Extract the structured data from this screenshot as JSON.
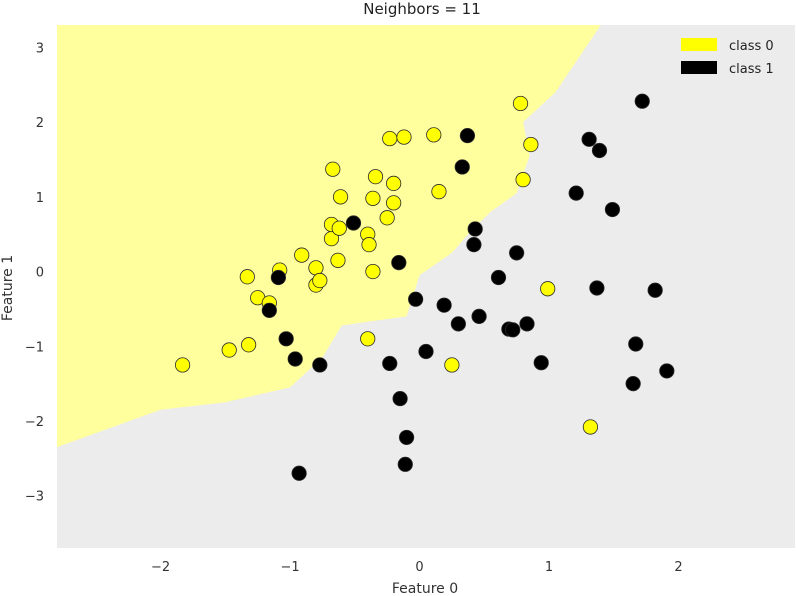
{
  "chart_data": {
    "type": "scatter",
    "title": "Neighbors = 11",
    "xlabel": "Feature 0",
    "ylabel": "Feature 1",
    "xlim": [
      -2.8,
      2.9
    ],
    "ylim": [
      -3.7,
      3.3
    ],
    "xticks": [
      -2,
      -1,
      0,
      1,
      2
    ],
    "yticks": [
      -3,
      -2,
      -1,
      0,
      1,
      2,
      3
    ],
    "grid": false,
    "legend_position": "top-right",
    "background_color": "#ececec",
    "decision_region": {
      "label": "class 0",
      "color": "#ffff9e",
      "boundary": [
        [
          -2.8,
          -2.35
        ],
        [
          -2.0,
          -1.85
        ],
        [
          -1.5,
          -1.75
        ],
        [
          -1.0,
          -1.55
        ],
        [
          -0.75,
          -1.15
        ],
        [
          -0.6,
          -0.72
        ],
        [
          -0.1,
          -0.6
        ],
        [
          0.0,
          -0.05
        ],
        [
          0.25,
          0.25
        ],
        [
          0.4,
          0.55
        ],
        [
          0.55,
          0.8
        ],
        [
          0.75,
          1.05
        ],
        [
          0.85,
          1.55
        ],
        [
          0.8,
          2.0
        ],
        [
          1.05,
          2.4
        ],
        [
          1.4,
          3.3
        ]
      ]
    },
    "series": [
      {
        "name": "class 0",
        "color": "#ffff00",
        "points": [
          [
            -1.83,
            -1.25
          ],
          [
            -1.47,
            -1.05
          ],
          [
            -1.32,
            -0.98
          ],
          [
            -1.25,
            -0.35
          ],
          [
            -1.16,
            -0.42
          ],
          [
            -1.33,
            -0.07
          ],
          [
            -1.08,
            0.02
          ],
          [
            -0.91,
            0.22
          ],
          [
            -0.8,
            0.05
          ],
          [
            -0.8,
            -0.18
          ],
          [
            -0.77,
            -0.12
          ],
          [
            -0.63,
            0.15
          ],
          [
            -0.68,
            0.44
          ],
          [
            -0.68,
            0.63
          ],
          [
            -0.62,
            0.58
          ],
          [
            -0.61,
            1.0
          ],
          [
            -0.67,
            1.37
          ],
          [
            -0.4,
            0.5
          ],
          [
            -0.39,
            0.36
          ],
          [
            -0.36,
            0.0
          ],
          [
            -0.36,
            0.98
          ],
          [
            -0.34,
            1.27
          ],
          [
            -0.25,
            0.72
          ],
          [
            -0.2,
            0.92
          ],
          [
            -0.2,
            1.18
          ],
          [
            -0.23,
            1.78
          ],
          [
            -0.12,
            1.8
          ],
          [
            0.11,
            1.83
          ],
          [
            0.15,
            1.07
          ],
          [
            -0.4,
            -0.9
          ],
          [
            0.25,
            -1.25
          ],
          [
            0.78,
            2.25
          ],
          [
            0.86,
            1.7
          ],
          [
            0.8,
            1.23
          ],
          [
            0.99,
            -0.23
          ],
          [
            1.32,
            -2.08
          ]
        ]
      },
      {
        "name": "class 1",
        "color": "#000000",
        "points": [
          [
            -1.16,
            -0.52
          ],
          [
            -1.09,
            -0.08
          ],
          [
            -1.03,
            -0.9
          ],
          [
            -0.96,
            -1.17
          ],
          [
            -0.77,
            -1.25
          ],
          [
            -0.93,
            -2.7
          ],
          [
            -0.51,
            0.65
          ],
          [
            -0.16,
            0.12
          ],
          [
            -0.23,
            -1.23
          ],
          [
            -0.15,
            -1.7
          ],
          [
            -0.1,
            -2.22
          ],
          [
            -0.11,
            -2.58
          ],
          [
            -0.03,
            -0.37
          ],
          [
            0.05,
            -1.07
          ],
          [
            0.19,
            -0.45
          ],
          [
            0.3,
            -0.7
          ],
          [
            0.33,
            1.4
          ],
          [
            0.37,
            1.82
          ],
          [
            0.43,
            0.57
          ],
          [
            0.42,
            0.36
          ],
          [
            0.46,
            -0.6
          ],
          [
            0.61,
            -0.08
          ],
          [
            0.69,
            -0.77
          ],
          [
            0.72,
            -0.78
          ],
          [
            0.75,
            0.25
          ],
          [
            0.83,
            -0.7
          ],
          [
            0.94,
            -1.22
          ],
          [
            1.21,
            1.05
          ],
          [
            1.31,
            1.77
          ],
          [
            1.37,
            -0.22
          ],
          [
            1.39,
            1.62
          ],
          [
            1.49,
            0.83
          ],
          [
            1.65,
            -1.5
          ],
          [
            1.67,
            -0.97
          ],
          [
            1.72,
            2.28
          ],
          [
            1.82,
            -0.25
          ],
          [
            1.91,
            -1.33
          ]
        ]
      }
    ]
  }
}
